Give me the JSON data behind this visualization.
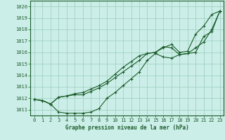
{
  "title": "Graphe pression niveau de la mer (hPa)",
  "xlim": [
    -0.5,
    23.5
  ],
  "ylim": [
    1010.5,
    1020.5
  ],
  "yticks": [
    1011,
    1012,
    1013,
    1014,
    1015,
    1016,
    1017,
    1018,
    1019,
    1020
  ],
  "xticks": [
    0,
    1,
    2,
    3,
    4,
    5,
    6,
    7,
    8,
    9,
    10,
    11,
    12,
    13,
    14,
    15,
    16,
    17,
    18,
    19,
    20,
    21,
    22,
    23
  ],
  "background_color": "#cceee8",
  "grid_color": "#99ccbb",
  "line_color": "#1a5c2a",
  "series": [
    [
      1011.9,
      1011.8,
      1011.5,
      1012.1,
      1012.2,
      1012.3,
      1012.3,
      1012.6,
      1012.9,
      1013.3,
      1013.8,
      1014.3,
      1014.8,
      1015.3,
      1015.9,
      1016.0,
      1016.4,
      1016.7,
      1016.0,
      1016.1,
      1017.6,
      1018.3,
      1019.3,
      1019.6
    ],
    [
      1011.9,
      1011.8,
      1011.5,
      1010.8,
      1010.7,
      1010.7,
      1010.7,
      1010.8,
      1011.1,
      1012.0,
      1012.5,
      1013.1,
      1013.7,
      1014.3,
      1015.3,
      1015.9,
      1015.6,
      1015.5,
      1015.8,
      1015.9,
      1016.4,
      1016.9,
      1018.0,
      1019.6
    ],
    [
      1011.9,
      1011.8,
      1011.5,
      1012.1,
      1012.2,
      1012.4,
      1012.5,
      1012.8,
      1013.1,
      1013.5,
      1014.1,
      1014.7,
      1015.2,
      1015.7,
      1015.9,
      1016.0,
      1016.5,
      1016.4,
      1015.8,
      1015.9,
      1016.0,
      1017.4,
      1017.8,
      1019.6
    ]
  ]
}
